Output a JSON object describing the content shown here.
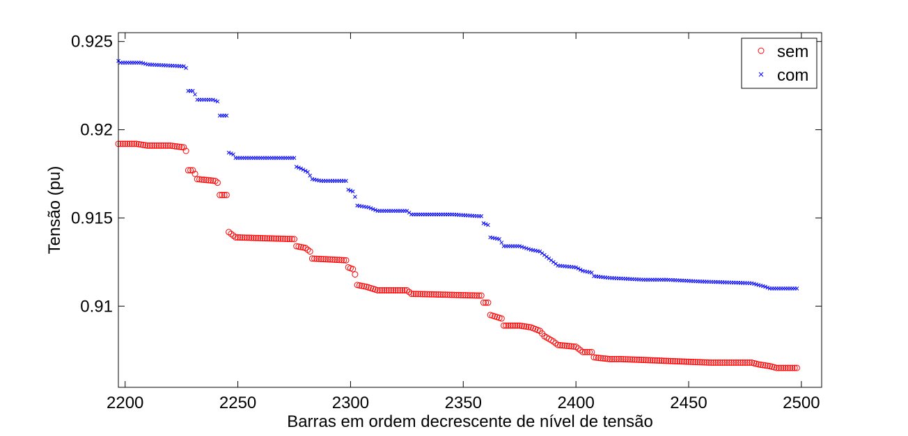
{
  "chart_data": {
    "type": "scatter",
    "title": "",
    "xlabel": "Barras em ordem decrescente de nível de tensão",
    "ylabel": "Tensão (pu)",
    "xlim": [
      2197,
      2509
    ],
    "ylim": [
      0.9054,
      0.9255
    ],
    "xticks": [
      2200,
      2250,
      2300,
      2350,
      2400,
      2450,
      2500
    ],
    "xtick_labels": [
      "2200",
      "2250",
      "2300",
      "2350",
      "2400",
      "2450",
      "2500"
    ],
    "yticks": [
      0.91,
      0.915,
      0.92,
      0.925
    ],
    "ytick_labels": [
      "0.91",
      "0.915",
      "0.92",
      "0.925"
    ],
    "grid": false,
    "legend_position": "top-right",
    "series": [
      {
        "name": "sem",
        "marker": "circle",
        "color": "#ff0000",
        "points": [
          [
            2197,
            0.9192
          ],
          [
            2205,
            0.9192
          ],
          [
            2210,
            0.9191
          ],
          [
            2220,
            0.9191
          ],
          [
            2226,
            0.919
          ],
          [
            2227,
            0.9188
          ],
          [
            2228,
            0.9177
          ],
          [
            2230,
            0.9177
          ],
          [
            2231,
            0.9175
          ],
          [
            2232,
            0.9172
          ],
          [
            2240,
            0.9171
          ],
          [
            2241,
            0.917
          ],
          [
            2242,
            0.9163
          ],
          [
            2245,
            0.9163
          ],
          [
            2246,
            0.9142
          ],
          [
            2248,
            0.914
          ],
          [
            2249,
            0.9139
          ],
          [
            2275,
            0.9138
          ],
          [
            2276,
            0.9134
          ],
          [
            2280,
            0.9133
          ],
          [
            2282,
            0.9131
          ],
          [
            2283,
            0.9127
          ],
          [
            2298,
            0.9126
          ],
          [
            2299,
            0.9122
          ],
          [
            2301,
            0.9121
          ],
          [
            2302,
            0.9118
          ],
          [
            2303,
            0.9112
          ],
          [
            2307,
            0.9111
          ],
          [
            2312,
            0.9109
          ],
          [
            2325,
            0.9109
          ],
          [
            2327,
            0.9107
          ],
          [
            2357,
            0.9106
          ],
          [
            2358,
            0.9106
          ],
          [
            2359,
            0.9102
          ],
          [
            2361,
            0.9102
          ],
          [
            2362,
            0.9095
          ],
          [
            2367,
            0.9093
          ],
          [
            2368,
            0.9089
          ],
          [
            2375,
            0.9089
          ],
          [
            2380,
            0.9088
          ],
          [
            2384,
            0.9086
          ],
          [
            2386,
            0.9083
          ],
          [
            2390,
            0.908
          ],
          [
            2392,
            0.9078
          ],
          [
            2400,
            0.9077
          ],
          [
            2403,
            0.9074
          ],
          [
            2407,
            0.9074
          ],
          [
            2408,
            0.9071
          ],
          [
            2415,
            0.907
          ],
          [
            2420,
            0.907
          ],
          [
            2440,
            0.9069
          ],
          [
            2460,
            0.9068
          ],
          [
            2478,
            0.9068
          ],
          [
            2481,
            0.9067
          ],
          [
            2486,
            0.9066
          ],
          [
            2489,
            0.9065
          ],
          [
            2498,
            0.9065
          ]
        ]
      },
      {
        "name": "com",
        "marker": "x",
        "color": "#0000ff",
        "points": [
          [
            2197,
            0.9239
          ],
          [
            2198,
            0.9238
          ],
          [
            2207,
            0.9238
          ],
          [
            2210,
            0.9237
          ],
          [
            2225,
            0.9236
          ],
          [
            2226,
            0.9236
          ],
          [
            2227,
            0.9235
          ],
          [
            2228,
            0.9222
          ],
          [
            2230,
            0.9222
          ],
          [
            2231,
            0.922
          ],
          [
            2232,
            0.9217
          ],
          [
            2239,
            0.9217
          ],
          [
            2241,
            0.9216
          ],
          [
            2242,
            0.9208
          ],
          [
            2245,
            0.9208
          ],
          [
            2246,
            0.9187
          ],
          [
            2248,
            0.9186
          ],
          [
            2249,
            0.9184
          ],
          [
            2260,
            0.9184
          ],
          [
            2270,
            0.9184
          ],
          [
            2275,
            0.9184
          ],
          [
            2276,
            0.9179
          ],
          [
            2278,
            0.9178
          ],
          [
            2281,
            0.9176
          ],
          [
            2283,
            0.9172
          ],
          [
            2287,
            0.9171
          ],
          [
            2293,
            0.9171
          ],
          [
            2298,
            0.9171
          ],
          [
            2299,
            0.9166
          ],
          [
            2301,
            0.9165
          ],
          [
            2302,
            0.9162
          ],
          [
            2303,
            0.9157
          ],
          [
            2308,
            0.9156
          ],
          [
            2312,
            0.9154
          ],
          [
            2325,
            0.9154
          ],
          [
            2327,
            0.9152
          ],
          [
            2345,
            0.9152
          ],
          [
            2357,
            0.9151
          ],
          [
            2358,
            0.9151
          ],
          [
            2359,
            0.9147
          ],
          [
            2361,
            0.9146
          ],
          [
            2362,
            0.9139
          ],
          [
            2366,
            0.9138
          ],
          [
            2368,
            0.9134
          ],
          [
            2375,
            0.9134
          ],
          [
            2380,
            0.9132
          ],
          [
            2384,
            0.9131
          ],
          [
            2386,
            0.9129
          ],
          [
            2390,
            0.9125
          ],
          [
            2392,
            0.9123
          ],
          [
            2400,
            0.9122
          ],
          [
            2403,
            0.912
          ],
          [
            2407,
            0.9119
          ],
          [
            2408,
            0.9117
          ],
          [
            2415,
            0.9116
          ],
          [
            2430,
            0.9115
          ],
          [
            2440,
            0.9115
          ],
          [
            2455,
            0.9114
          ],
          [
            2478,
            0.9113
          ],
          [
            2481,
            0.9112
          ],
          [
            2484,
            0.9111
          ],
          [
            2486,
            0.911
          ],
          [
            2498,
            0.911
          ]
        ]
      }
    ]
  }
}
